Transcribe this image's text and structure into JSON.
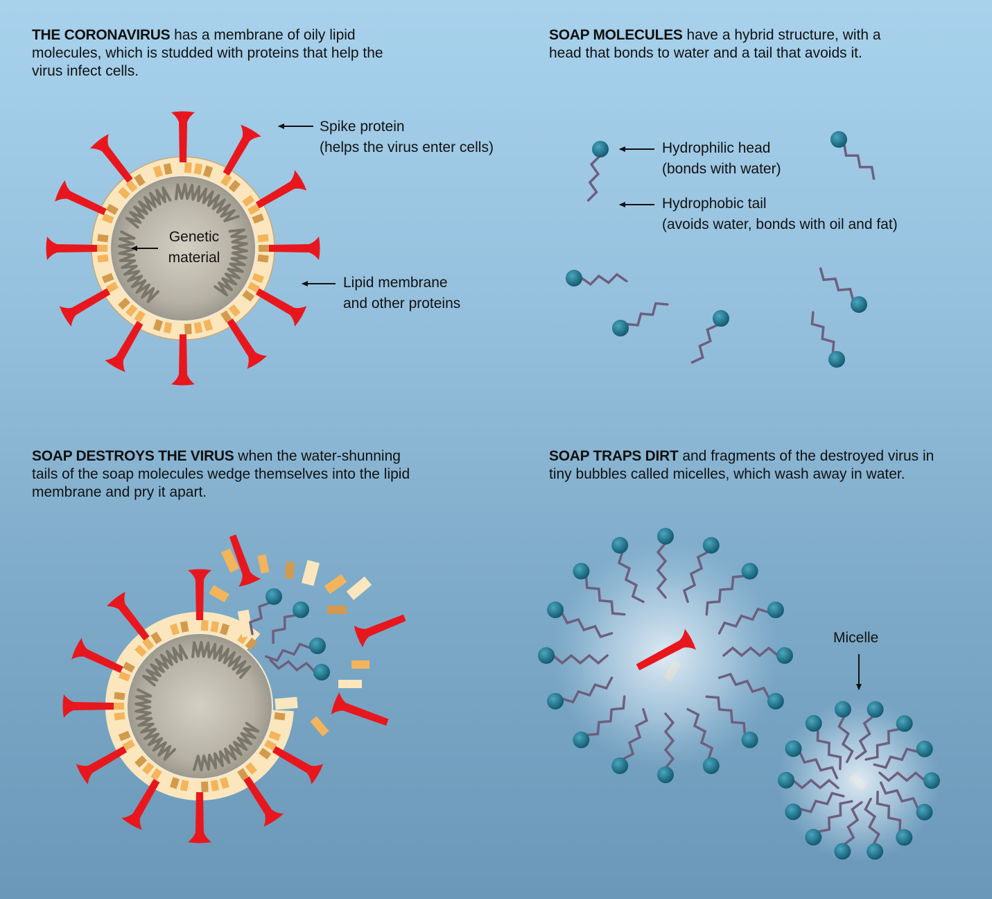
{
  "panels": {
    "coronavirus": {
      "heading": "THE CORONAVIRUS",
      "text": " has a membrane of oily lipid molecules, which is studded with proteins that help the virus infect cells."
    },
    "soap_molecules": {
      "heading": "SOAP MOLECULES",
      "text": " have a hybrid structure, with a head that bonds to water and a tail that avoids it."
    },
    "soap_destroys": {
      "heading": "SOAP DESTROYS THE VIRUS",
      "text": " when the water-shunning tails of the soap molecules wedge themselves into the lipid membrane and pry it apart."
    },
    "soap_traps": {
      "heading": "SOAP TRAPS DIRT",
      "text": " and fragments of the destroyed virus in tiny bubbles called micelles, which wash away in water."
    }
  },
  "labels": {
    "spike_line1": "Spike protein",
    "spike_line2": "(helps the virus enter cells)",
    "genetic_line1": "Genetic",
    "genetic_line2": "material",
    "lipid_line1": "Lipid membrane",
    "lipid_line2": "and other proteins",
    "head_line1": "Hydrophilic head",
    "head_line2": "(bonds with water)",
    "tail_line1": "Hydrophobic tail",
    "tail_line2": "(avoids water, bonds with oil and fat)",
    "micelle": "Micelle"
  },
  "colors": {
    "spike": "#e8171d",
    "membrane_light": "#fbe6bd",
    "membrane_gold": "#f4b45c",
    "membrane_tan": "#d39a4c",
    "core": "#b0aca0",
    "rna": "#7a776a",
    "soap_head": "#1e7891",
    "soap_tail": "#6d5f7e"
  }
}
